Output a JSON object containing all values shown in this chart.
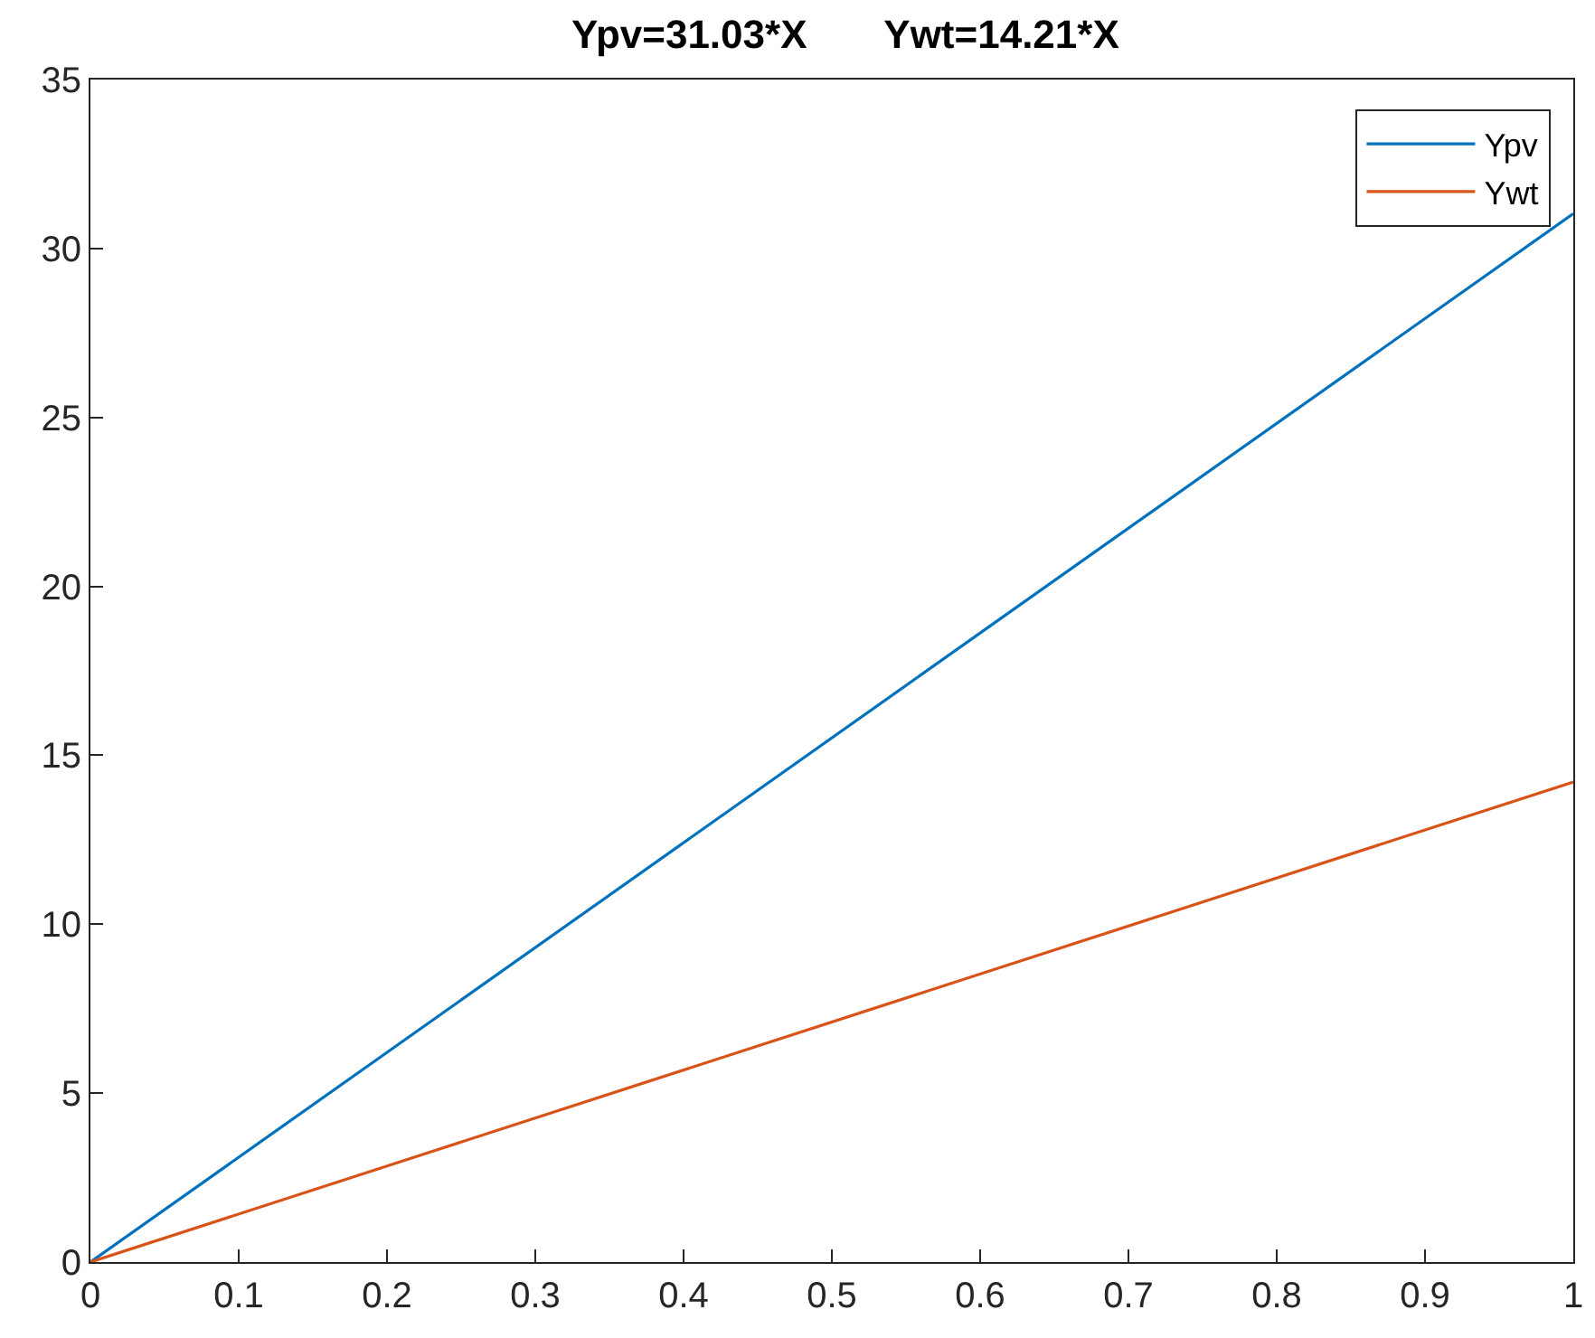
{
  "chart_data": {
    "type": "line",
    "title": "Ypv=31.03*X       Ywt=14.21*X",
    "x": [
      0,
      1
    ],
    "series": [
      {
        "name": "Ypv",
        "color": "#0072bd",
        "values": [
          0,
          31.03
        ]
      },
      {
        "name": "Ywt",
        "color": "#d95319",
        "values": [
          0,
          14.21
        ]
      }
    ],
    "xlim": [
      0,
      1
    ],
    "xticks": [
      0,
      0.1,
      0.2,
      0.3,
      0.4,
      0.5,
      0.6,
      0.7,
      0.8,
      0.9,
      1
    ],
    "ylim": [
      0,
      35
    ],
    "yticks": [
      0,
      5,
      10,
      15,
      20,
      25,
      30,
      35
    ],
    "legend": "top right",
    "marker": "none",
    "line_style": "solid"
  }
}
